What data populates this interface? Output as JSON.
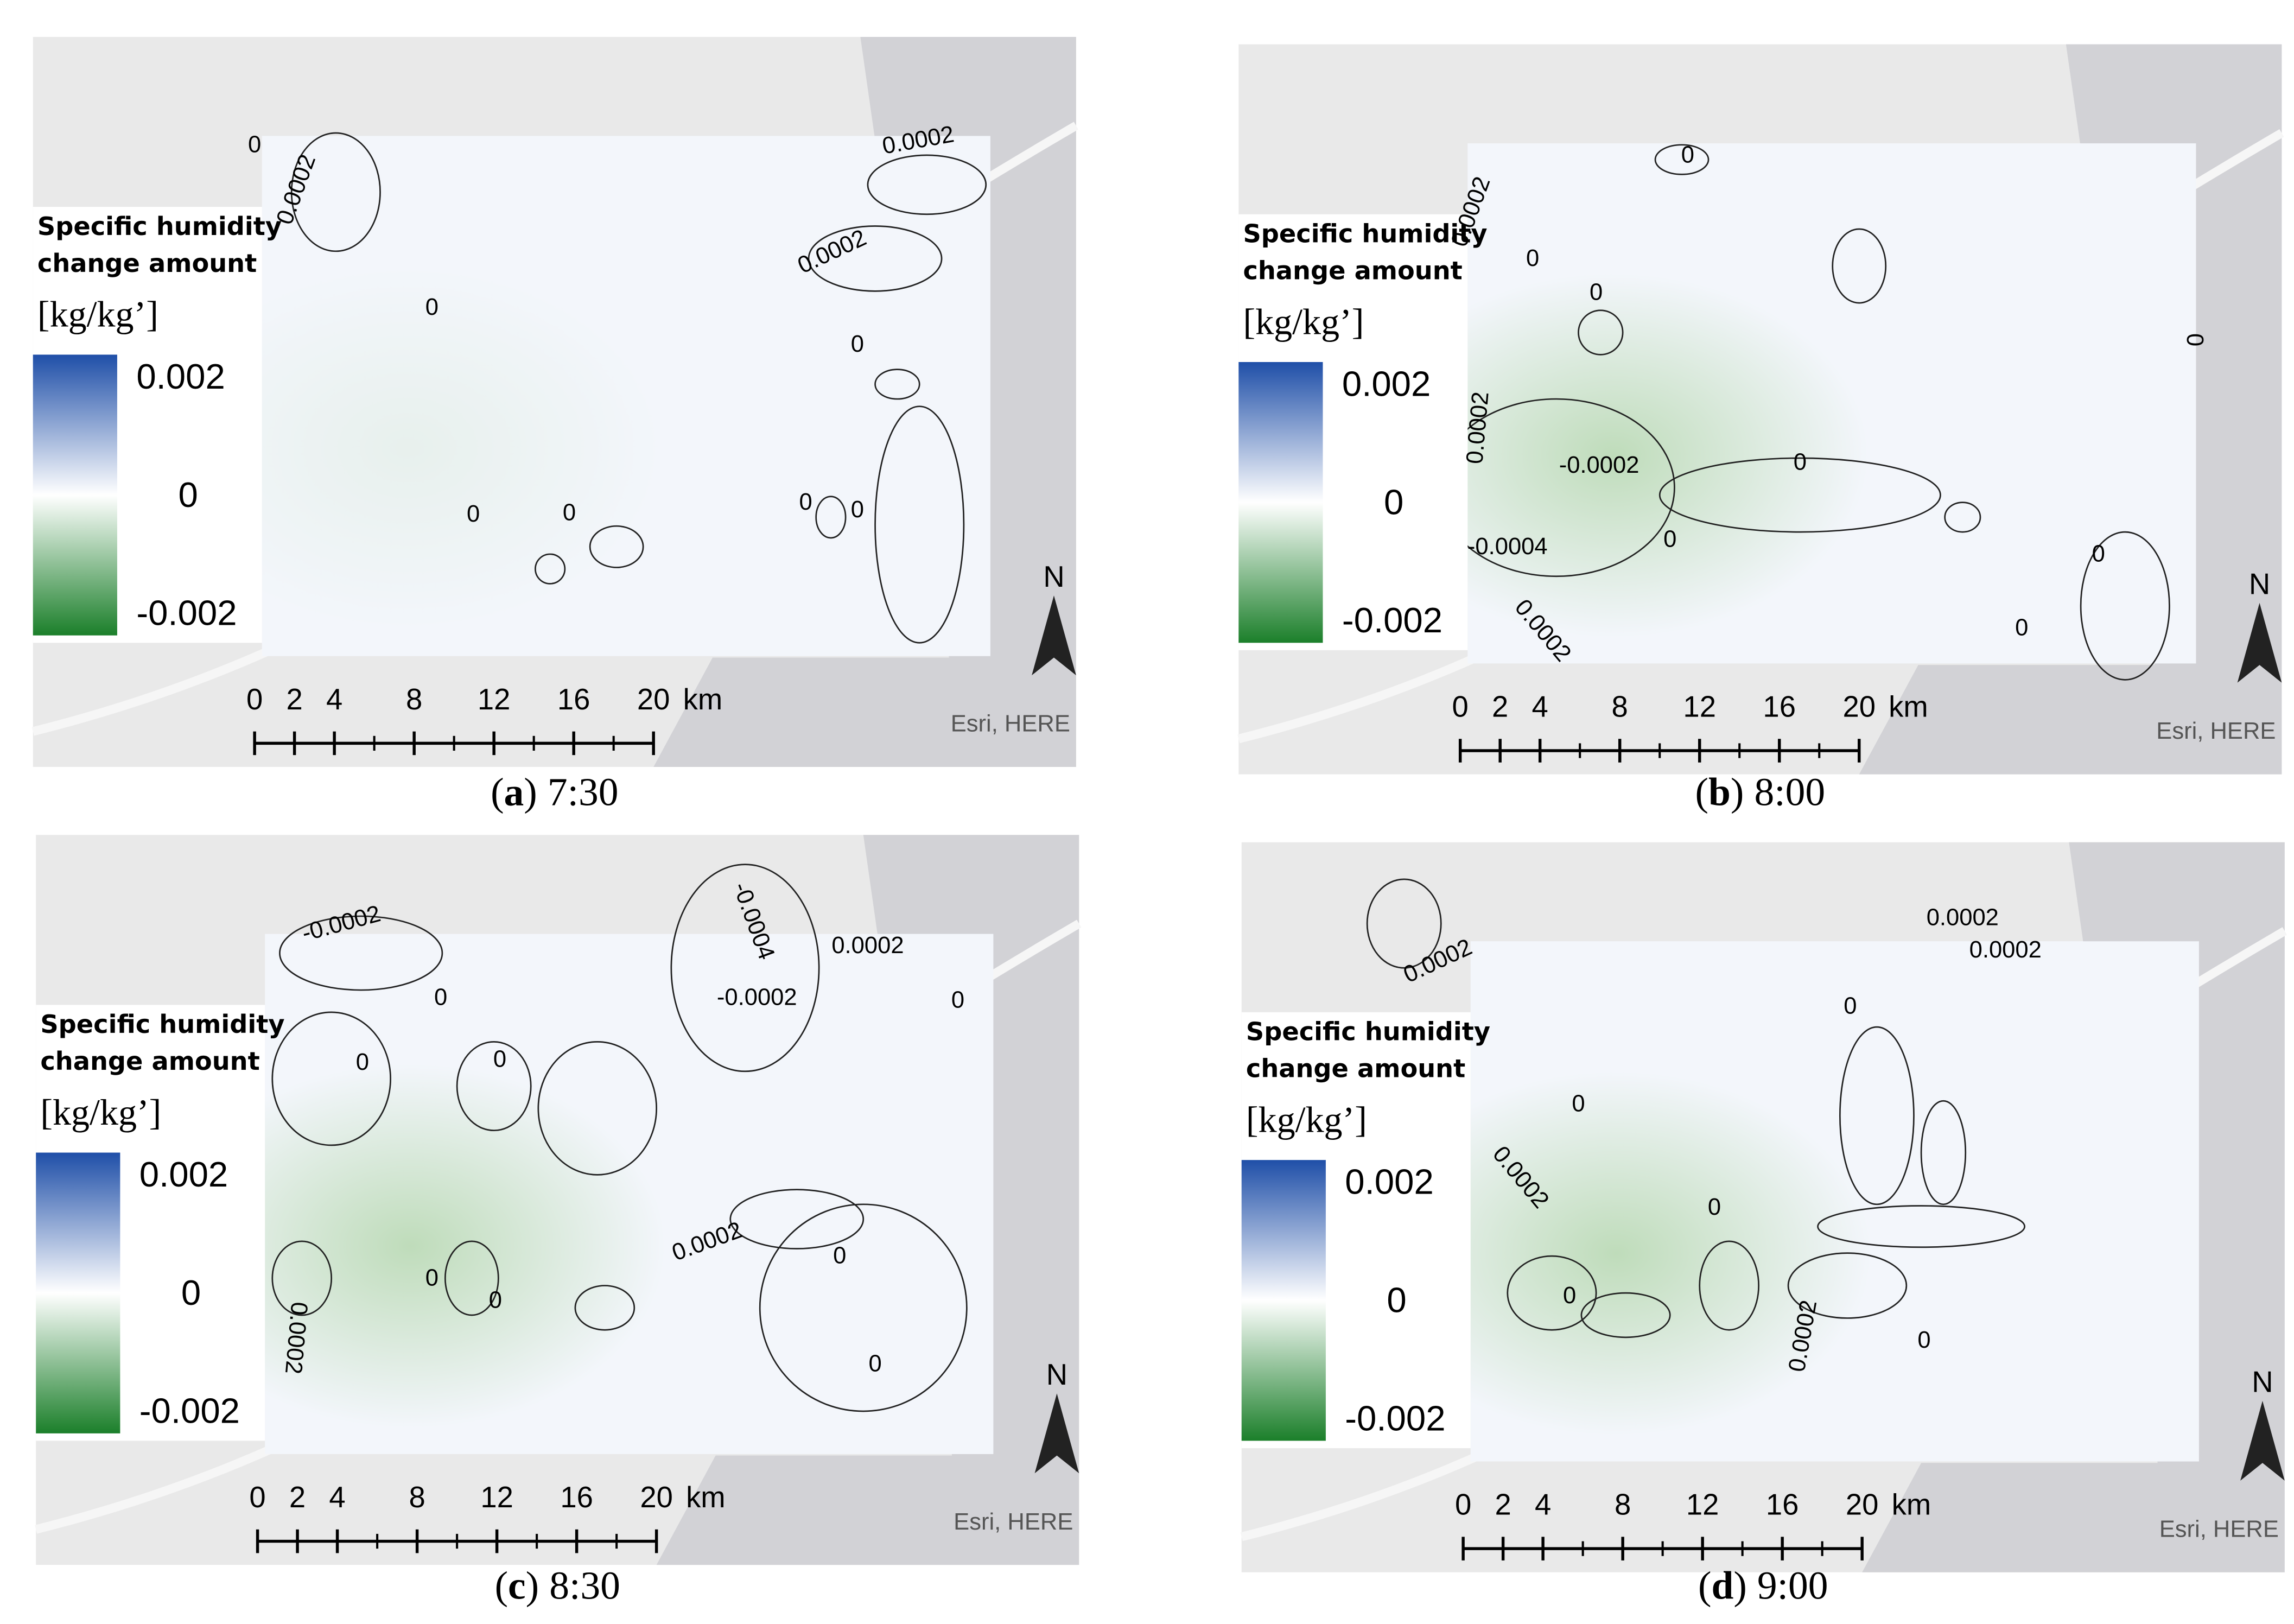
{
  "panels": [
    {
      "caption": {
        "open": "(",
        "letter": "a",
        "close": ")",
        "time": "7:30"
      },
      "legend": {
        "title": [
          "Specific humidity",
          "change amount"
        ],
        "unit": "[kg/kg’]",
        "ticks": [
          0.002,
          0,
          -0.002
        ]
      },
      "scale": {
        "ticks": [
          0,
          2,
          4,
          8,
          12,
          16,
          20
        ],
        "unit": "km"
      },
      "north": "N",
      "attribution": "Esri, HERE",
      "contour_labels": [
        "0",
        "0.0002",
        "0.0002",
        "0.0002",
        "0",
        "0",
        "0",
        "0",
        "0",
        "0"
      ]
    },
    {
      "caption": {
        "open": "(",
        "letter": "b",
        "close": ")",
        "time": "8:00"
      },
      "legend": {
        "title": [
          "Specific humidity",
          "change amount"
        ],
        "unit": "[kg/kg’]",
        "ticks": [
          0.002,
          0,
          -0.002
        ]
      },
      "scale": {
        "ticks": [
          0,
          2,
          4,
          8,
          12,
          16,
          20
        ],
        "unit": "km"
      },
      "north": "N",
      "attribution": "Esri, HERE",
      "contour_labels": [
        "0",
        "0.0002",
        "0",
        "0",
        "0",
        "0.0002",
        "-0.0002",
        "-0.0004",
        "0",
        "0",
        "0",
        "0.0002",
        "0"
      ]
    },
    {
      "caption": {
        "open": "(",
        "letter": "c",
        "close": ")",
        "time": "8:30"
      },
      "legend": {
        "title": [
          "Specific humidity",
          "change amount"
        ],
        "unit": "[kg/kg’]",
        "ticks": [
          0.002,
          0,
          -0.002
        ]
      },
      "scale": {
        "ticks": [
          0,
          2,
          4,
          8,
          12,
          16,
          20
        ],
        "unit": "km"
      },
      "north": "N",
      "attribution": "Esri, HERE",
      "contour_labels": [
        "-0.0002",
        "-0.0004",
        "0.0002",
        "-0.0002",
        "0",
        "0",
        "0",
        "0.0002",
        "0",
        "0",
        "0",
        "0.0002",
        "0",
        "0"
      ]
    },
    {
      "caption": {
        "open": "(",
        "letter": "d",
        "close": ")",
        "time": "9:00"
      },
      "legend": {
        "title": [
          "Specific humidity",
          "change amount"
        ],
        "unit": "[kg/kg’]",
        "ticks": [
          0.002,
          0,
          -0.002
        ]
      },
      "scale": {
        "ticks": [
          0,
          2,
          4,
          8,
          12,
          16,
          20
        ],
        "unit": "km"
      },
      "north": "N",
      "attribution": "Esri, HERE",
      "contour_labels": [
        "0.0002",
        "0.0002",
        "0.0002",
        "0",
        "0",
        "0.0002",
        "0",
        "0",
        "0.0002",
        "0"
      ]
    }
  ]
}
